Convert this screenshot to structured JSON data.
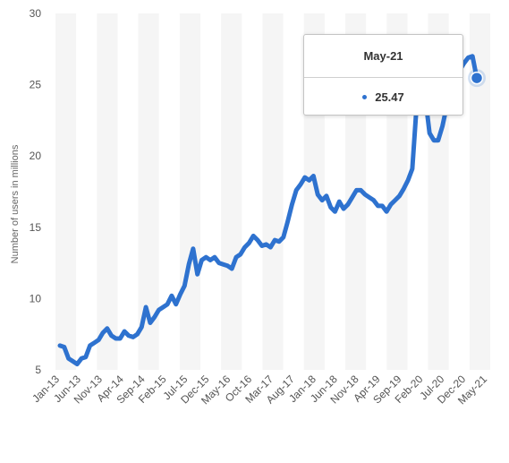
{
  "chart_data": {
    "type": "line",
    "ylabel": "Number of users in millions",
    "ylim": [
      5,
      30
    ],
    "yticks": [
      5,
      10,
      15,
      20,
      25,
      30
    ],
    "grid": "alternating-vertical-bands",
    "line_color": "#2e72cf",
    "band_color": "#f5f5f5",
    "x_tick_labels": [
      "Jan-13",
      "Jun-13",
      "Nov-13",
      "Apr-14",
      "Sep-14",
      "Feb-15",
      "Jul-15",
      "Dec-15",
      "May-16",
      "Oct-16",
      "Mar-17",
      "Aug-17",
      "Jan-18",
      "Jun-18",
      "Nov-18",
      "Apr-19",
      "Sep-19",
      "Feb-20",
      "Jul-20",
      "Dec-20",
      "May-21"
    ],
    "start": "Jan-13",
    "series": [
      {
        "values": [
          6.7,
          6.6,
          5.8,
          5.6,
          5.4,
          5.8,
          5.9,
          6.7,
          6.9,
          7.1,
          7.6,
          7.9,
          7.4,
          7.2,
          7.2,
          7.7,
          7.4,
          7.3,
          7.5,
          8.0,
          9.4,
          8.3,
          8.7,
          9.2,
          9.4,
          9.6,
          10.2,
          9.6,
          10.3,
          10.9,
          12.4,
          13.5,
          11.7,
          12.7,
          12.9,
          12.7,
          12.9,
          12.5,
          12.4,
          12.3,
          12.1,
          12.9,
          13.1,
          13.6,
          13.9,
          14.4,
          14.1,
          13.7,
          13.8,
          13.6,
          14.1,
          14.0,
          14.3,
          15.4,
          16.6,
          17.6,
          18.0,
          18.5,
          18.3,
          18.6,
          17.3,
          16.9,
          17.2,
          16.4,
          16.1,
          16.8,
          16.3,
          16.6,
          17.1,
          17.6,
          17.6,
          17.3,
          17.1,
          16.9,
          16.5,
          16.5,
          16.1,
          16.6,
          16.9,
          17.2,
          17.7,
          18.3,
          19.1,
          23.5,
          24.9,
          24.1,
          21.6,
          21.1,
          21.1,
          22.1,
          23.5,
          25.1,
          25.6,
          26.0,
          26.5,
          26.9,
          27.0,
          25.47
        ]
      }
    ],
    "tooltip": {
      "label": "May-21",
      "value": "25.47"
    }
  }
}
